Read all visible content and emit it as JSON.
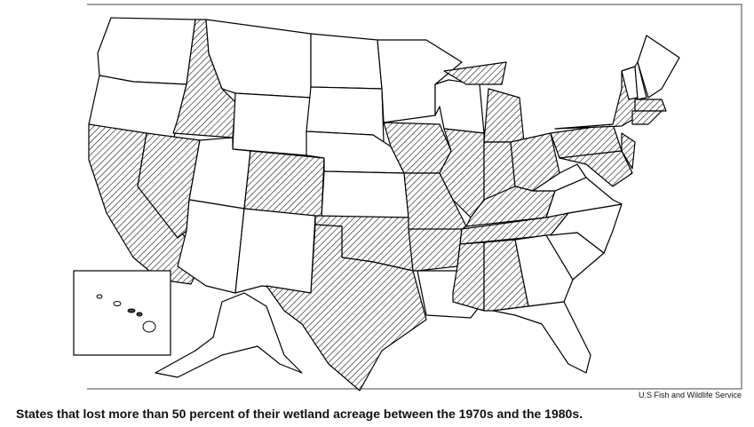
{
  "credit": "U.S Fish and Wildlife Service",
  "caption": "States that lost more than 50 percent of their wetland acreage between the 1970s and the 1980s."
}
